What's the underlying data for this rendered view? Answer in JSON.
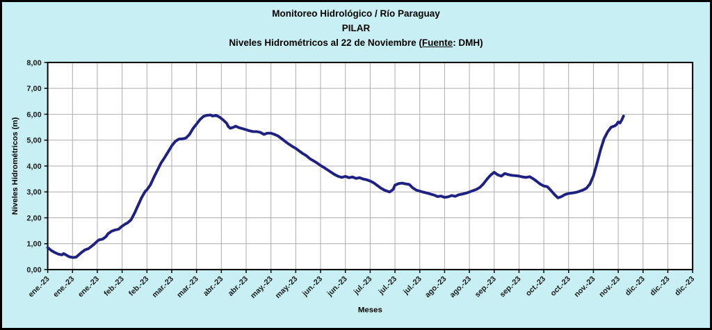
{
  "window": {
    "bg_color": "#C7EFF4",
    "frame_border_color": "#000000"
  },
  "chart_data": {
    "type": "line",
    "title": "Monitoreo Hidrológico / Río Paraguay",
    "subtitle": "PILAR",
    "caption": {
      "prefix": "Niveles Hidrométricos al 22 de Noviembre (",
      "underlined": "Fuente",
      "suffix": ": DMH)"
    },
    "xlabel": "Meses",
    "ylabel": "Niveles Hidrométricos (m)",
    "ylim": [
      0,
      8
    ],
    "y_tick_step": 1,
    "y_tick_labels": [
      "0,00",
      "1,00",
      "2,00",
      "3,00",
      "4,00",
      "5,00",
      "6,00",
      "7,00",
      "8,00"
    ],
    "x_tick_labels": [
      "ene.-23",
      "ene.-23",
      "ene.-23",
      "feb.-23",
      "feb.-23",
      "mar.-23",
      "mar.-23",
      "abr.-23",
      "abr.-23",
      "may.-23",
      "may.-23",
      "jun.-23",
      "jun.-23",
      "jul.-23",
      "jul.-23",
      "jul.-23",
      "ago.-23",
      "ago.-23",
      "sep.-23",
      "sep.-23",
      "oct.-23",
      "oct.-23",
      "nov.-23",
      "nov.-23",
      "dic.-23",
      "dic.-23",
      "dic.-23"
    ],
    "x_tick_interval_days": 14,
    "x_total_days": 364,
    "grid": true,
    "legend": "none",
    "plot_bg": "#FFFFFF",
    "grid_color": "#ABABAB",
    "line_color": "#1E2182",
    "axis_color": "#000000",
    "points_day_value": [
      [
        0,
        0.85
      ],
      [
        2,
        0.74
      ],
      [
        4,
        0.66
      ],
      [
        6,
        0.6
      ],
      [
        8,
        0.57
      ],
      [
        9,
        0.62
      ],
      [
        10,
        0.58
      ],
      [
        12,
        0.5
      ],
      [
        14,
        0.47
      ],
      [
        16,
        0.48
      ],
      [
        17,
        0.54
      ],
      [
        19,
        0.66
      ],
      [
        21,
        0.76
      ],
      [
        23,
        0.81
      ],
      [
        24,
        0.86
      ],
      [
        26,
        0.97
      ],
      [
        28,
        1.1
      ],
      [
        29,
        1.15
      ],
      [
        31,
        1.18
      ],
      [
        33,
        1.28
      ],
      [
        34,
        1.38
      ],
      [
        36,
        1.48
      ],
      [
        38,
        1.53
      ],
      [
        40,
        1.56
      ],
      [
        42,
        1.68
      ],
      [
        44,
        1.77
      ],
      [
        45,
        1.8
      ],
      [
        47,
        1.92
      ],
      [
        49,
        2.18
      ],
      [
        51,
        2.48
      ],
      [
        53,
        2.78
      ],
      [
        55,
        3.02
      ],
      [
        56,
        3.08
      ],
      [
        58,
        3.28
      ],
      [
        60,
        3.58
      ],
      [
        62,
        3.85
      ],
      [
        64,
        4.12
      ],
      [
        66,
        4.33
      ],
      [
        68,
        4.55
      ],
      [
        70,
        4.78
      ],
      [
        72,
        4.95
      ],
      [
        74,
        5.04
      ],
      [
        76,
        5.05
      ],
      [
        78,
        5.08
      ],
      [
        80,
        5.22
      ],
      [
        82,
        5.45
      ],
      [
        84,
        5.62
      ],
      [
        86,
        5.8
      ],
      [
        88,
        5.92
      ],
      [
        90,
        5.96
      ],
      [
        92,
        5.97
      ],
      [
        93,
        5.93
      ],
      [
        95,
        5.96
      ],
      [
        97,
        5.89
      ],
      [
        99,
        5.78
      ],
      [
        101,
        5.65
      ],
      [
        102,
        5.52
      ],
      [
        103,
        5.46
      ],
      [
        105,
        5.5
      ],
      [
        106,
        5.54
      ],
      [
        108,
        5.48
      ],
      [
        110,
        5.44
      ],
      [
        112,
        5.4
      ],
      [
        114,
        5.36
      ],
      [
        116,
        5.33
      ],
      [
        118,
        5.33
      ],
      [
        120,
        5.3
      ],
      [
        122,
        5.22
      ],
      [
        124,
        5.27
      ],
      [
        126,
        5.27
      ],
      [
        128,
        5.22
      ],
      [
        130,
        5.16
      ],
      [
        132,
        5.06
      ],
      [
        134,
        4.95
      ],
      [
        136,
        4.85
      ],
      [
        138,
        4.76
      ],
      [
        140,
        4.68
      ],
      [
        142,
        4.58
      ],
      [
        144,
        4.48
      ],
      [
        146,
        4.4
      ],
      [
        148,
        4.28
      ],
      [
        150,
        4.2
      ],
      [
        152,
        4.12
      ],
      [
        154,
        4.02
      ],
      [
        156,
        3.94
      ],
      [
        158,
        3.85
      ],
      [
        160,
        3.76
      ],
      [
        162,
        3.67
      ],
      [
        164,
        3.6
      ],
      [
        166,
        3.56
      ],
      [
        168,
        3.6
      ],
      [
        170,
        3.55
      ],
      [
        172,
        3.58
      ],
      [
        174,
        3.52
      ],
      [
        176,
        3.55
      ],
      [
        178,
        3.5
      ],
      [
        180,
        3.47
      ],
      [
        182,
        3.42
      ],
      [
        184,
        3.35
      ],
      [
        186,
        3.25
      ],
      [
        188,
        3.15
      ],
      [
        190,
        3.07
      ],
      [
        192,
        3.02
      ],
      [
        193,
        3.0
      ],
      [
        195,
        3.1
      ],
      [
        196,
        3.26
      ],
      [
        198,
        3.32
      ],
      [
        200,
        3.34
      ],
      [
        202,
        3.31
      ],
      [
        204,
        3.29
      ],
      [
        206,
        3.16
      ],
      [
        208,
        3.07
      ],
      [
        210,
        3.03
      ],
      [
        212,
        2.99
      ],
      [
        214,
        2.96
      ],
      [
        216,
        2.92
      ],
      [
        218,
        2.88
      ],
      [
        220,
        2.82
      ],
      [
        222,
        2.84
      ],
      [
        224,
        2.79
      ],
      [
        226,
        2.81
      ],
      [
        228,
        2.86
      ],
      [
        230,
        2.83
      ],
      [
        232,
        2.89
      ],
      [
        234,
        2.92
      ],
      [
        236,
        2.95
      ],
      [
        238,
        3.0
      ],
      [
        240,
        3.05
      ],
      [
        242,
        3.1
      ],
      [
        244,
        3.18
      ],
      [
        246,
        3.32
      ],
      [
        248,
        3.5
      ],
      [
        250,
        3.65
      ],
      [
        252,
        3.76
      ],
      [
        254,
        3.66
      ],
      [
        256,
        3.61
      ],
      [
        258,
        3.71
      ],
      [
        260,
        3.67
      ],
      [
        262,
        3.64
      ],
      [
        264,
        3.63
      ],
      [
        266,
        3.61
      ],
      [
        268,
        3.58
      ],
      [
        270,
        3.56
      ],
      [
        272,
        3.59
      ],
      [
        274,
        3.51
      ],
      [
        276,
        3.41
      ],
      [
        278,
        3.3
      ],
      [
        280,
        3.23
      ],
      [
        282,
        3.2
      ],
      [
        284,
        3.06
      ],
      [
        286,
        2.9
      ],
      [
        288,
        2.77
      ],
      [
        290,
        2.82
      ],
      [
        292,
        2.9
      ],
      [
        294,
        2.94
      ],
      [
        296,
        2.96
      ],
      [
        298,
        2.98
      ],
      [
        300,
        3.02
      ],
      [
        302,
        3.07
      ],
      [
        304,
        3.14
      ],
      [
        306,
        3.3
      ],
      [
        308,
        3.62
      ],
      [
        310,
        4.1
      ],
      [
        312,
        4.62
      ],
      [
        314,
        5.05
      ],
      [
        316,
        5.32
      ],
      [
        318,
        5.5
      ],
      [
        320,
        5.55
      ],
      [
        321,
        5.6
      ],
      [
        322,
        5.7
      ],
      [
        323,
        5.66
      ],
      [
        324,
        5.78
      ],
      [
        325,
        5.93
      ]
    ]
  }
}
